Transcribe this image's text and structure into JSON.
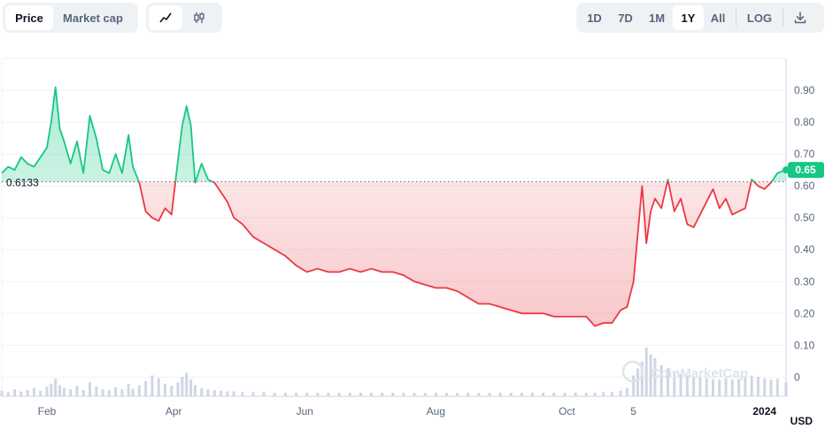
{
  "toolbar": {
    "view_tabs": [
      "Price",
      "Market cap"
    ],
    "active_view": "Price",
    "chart_style_icons": [
      "line-chart-icon",
      "candlestick-icon"
    ],
    "ranges": [
      "1D",
      "7D",
      "1M",
      "1Y",
      "All"
    ],
    "active_range": "1Y",
    "log_label": "LOG",
    "download_icon": "download-icon"
  },
  "currency_label": "USD",
  "watermark": "CoinMarketCap",
  "colors": {
    "up": "#16c784",
    "down": "#ea3943",
    "grid": "#eff2f5",
    "text": "#58667e",
    "badge": "#16c784"
  },
  "chart_data": {
    "type": "line",
    "title": "",
    "xlabel": "",
    "ylabel": "",
    "baseline": 0.6133,
    "baseline_label": "0.6133",
    "current_value": 0.65,
    "current_label": "0.65",
    "ylim": [
      -0.06,
      1.0
    ],
    "yticks": [
      0,
      0.1,
      0.2,
      0.3,
      0.4,
      0.5,
      0.6,
      0.7,
      0.8,
      0.9
    ],
    "ytick_labels": [
      "0",
      "0.10",
      "0.20",
      "0.30",
      "0.40",
      "0.50",
      "0.60",
      "0.70",
      "0.80",
      "0.90"
    ],
    "xlim": [
      "2023-01-11",
      "2024-01-11"
    ],
    "xticks": [
      "2023-02-01",
      "2023-04-01",
      "2023-06-01",
      "2023-08-01",
      "2023-10-01",
      "2023-11-01",
      "2024-01-01"
    ],
    "xtick_labels": [
      "Feb",
      "Apr",
      "Jun",
      "Aug",
      "Oct",
      "5",
      "2024"
    ],
    "series": [
      {
        "x": [
          "2023-01-11",
          "2023-01-14",
          "2023-01-17",
          "2023-01-20",
          "2023-01-23",
          "2023-01-26",
          "2023-01-29",
          "2023-02-01",
          "2023-02-03",
          "2023-02-05",
          "2023-02-07",
          "2023-02-09",
          "2023-02-12",
          "2023-02-15",
          "2023-02-18",
          "2023-02-21",
          "2023-02-24",
          "2023-02-27",
          "2023-03-02",
          "2023-03-05",
          "2023-03-08",
          "2023-03-11",
          "2023-03-13",
          "2023-03-16",
          "2023-03-19",
          "2023-03-22",
          "2023-03-25",
          "2023-03-28",
          "2023-03-31",
          "2023-04-03",
          "2023-04-05",
          "2023-04-07",
          "2023-04-09",
          "2023-04-11",
          "2023-04-14",
          "2023-04-17",
          "2023-04-20",
          "2023-04-23",
          "2023-04-26",
          "2023-04-29",
          "2023-05-03",
          "2023-05-08",
          "2023-05-13",
          "2023-05-18",
          "2023-05-23",
          "2023-05-28",
          "2023-06-02",
          "2023-06-07",
          "2023-06-12",
          "2023-06-17",
          "2023-06-22",
          "2023-06-27",
          "2023-07-02",
          "2023-07-07",
          "2023-07-12",
          "2023-07-17",
          "2023-07-22",
          "2023-07-27",
          "2023-08-01",
          "2023-08-06",
          "2023-08-11",
          "2023-08-16",
          "2023-08-21",
          "2023-08-26",
          "2023-08-31",
          "2023-09-05",
          "2023-09-10",
          "2023-09-15",
          "2023-09-20",
          "2023-09-25",
          "2023-09-30",
          "2023-10-05",
          "2023-10-10",
          "2023-10-14",
          "2023-10-18",
          "2023-10-22",
          "2023-10-26",
          "2023-10-29",
          "2023-11-01",
          "2023-11-03",
          "2023-11-05",
          "2023-11-07",
          "2023-11-09",
          "2023-11-11",
          "2023-11-14",
          "2023-11-17",
          "2023-11-20",
          "2023-11-23",
          "2023-11-26",
          "2023-11-29",
          "2023-12-02",
          "2023-12-05",
          "2023-12-08",
          "2023-12-11",
          "2023-12-14",
          "2023-12-17",
          "2023-12-20",
          "2023-12-23",
          "2023-12-26",
          "2023-12-29",
          "2024-01-01",
          "2024-01-04",
          "2024-01-07",
          "2024-01-11"
        ],
        "values": [
          0.64,
          0.66,
          0.65,
          0.69,
          0.67,
          0.66,
          0.69,
          0.72,
          0.8,
          0.91,
          0.78,
          0.74,
          0.67,
          0.74,
          0.64,
          0.82,
          0.75,
          0.65,
          0.64,
          0.7,
          0.64,
          0.76,
          0.66,
          0.61,
          0.52,
          0.5,
          0.49,
          0.53,
          0.51,
          0.68,
          0.79,
          0.85,
          0.79,
          0.61,
          0.67,
          0.62,
          0.61,
          0.58,
          0.55,
          0.5,
          0.48,
          0.44,
          0.42,
          0.4,
          0.38,
          0.35,
          0.33,
          0.34,
          0.33,
          0.33,
          0.34,
          0.33,
          0.34,
          0.33,
          0.33,
          0.32,
          0.3,
          0.29,
          0.28,
          0.28,
          0.27,
          0.25,
          0.23,
          0.23,
          0.22,
          0.21,
          0.2,
          0.2,
          0.2,
          0.19,
          0.19,
          0.19,
          0.19,
          0.16,
          0.17,
          0.17,
          0.21,
          0.22,
          0.3,
          0.45,
          0.6,
          0.42,
          0.52,
          0.56,
          0.53,
          0.62,
          0.52,
          0.56,
          0.48,
          0.47,
          0.51,
          0.55,
          0.59,
          0.53,
          0.56,
          0.51,
          0.52,
          0.53,
          0.62,
          0.6,
          0.59,
          0.61,
          0.64,
          0.65
        ]
      }
    ],
    "volume": [
      8,
      6,
      10,
      7,
      9,
      12,
      8,
      14,
      18,
      25,
      16,
      12,
      10,
      15,
      9,
      20,
      14,
      10,
      9,
      13,
      10,
      18,
      11,
      16,
      22,
      30,
      26,
      18,
      15,
      20,
      28,
      34,
      24,
      16,
      12,
      10,
      9,
      8,
      7,
      7,
      6,
      6,
      6,
      5,
      5,
      5,
      5,
      5,
      5,
      5,
      5,
      5,
      5,
      5,
      5,
      5,
      5,
      5,
      5,
      5,
      5,
      5,
      5,
      5,
      5,
      5,
      5,
      5,
      5,
      5,
      5,
      5,
      5,
      5,
      6,
      6,
      8,
      12,
      30,
      40,
      50,
      70,
      60,
      55,
      45,
      40,
      35,
      32,
      30,
      28,
      28,
      26,
      25,
      24,
      26,
      24,
      25,
      28,
      30,
      28,
      26,
      24,
      25,
      20
    ]
  }
}
